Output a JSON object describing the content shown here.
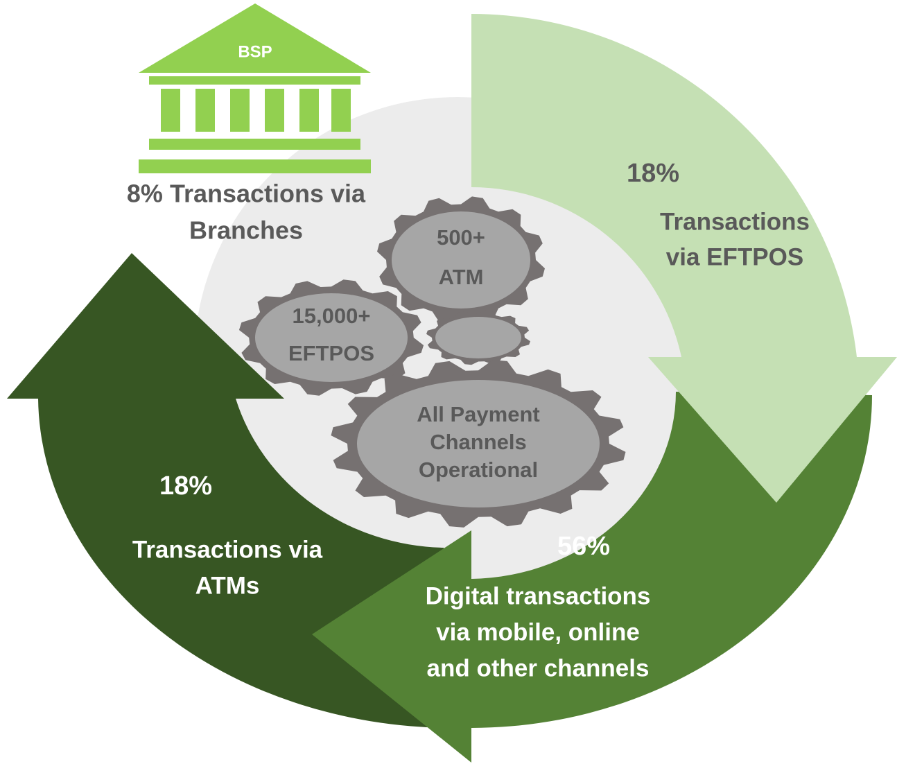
{
  "bank": {
    "label": "BSP"
  },
  "branches": {
    "lines": [
      "8% Transactions via",
      "Branches"
    ]
  },
  "eftpos": {
    "percent": "18%",
    "lines": [
      "Transactions",
      "via EFTPOS"
    ]
  },
  "atms": {
    "percent": "18%",
    "lines": [
      "Transactions via",
      "ATMs"
    ]
  },
  "digital": {
    "percent": "56%",
    "lines": [
      "Digital transactions",
      "via mobile, online",
      "and other channels"
    ]
  },
  "gears": [
    {
      "lines": [
        "500+",
        "ATM"
      ]
    },
    {
      "lines": [
        "15,000+",
        "EFTPOS"
      ]
    },
    {
      "lines": [
        "All Payment",
        "Channels",
        "Operational"
      ]
    }
  ]
}
